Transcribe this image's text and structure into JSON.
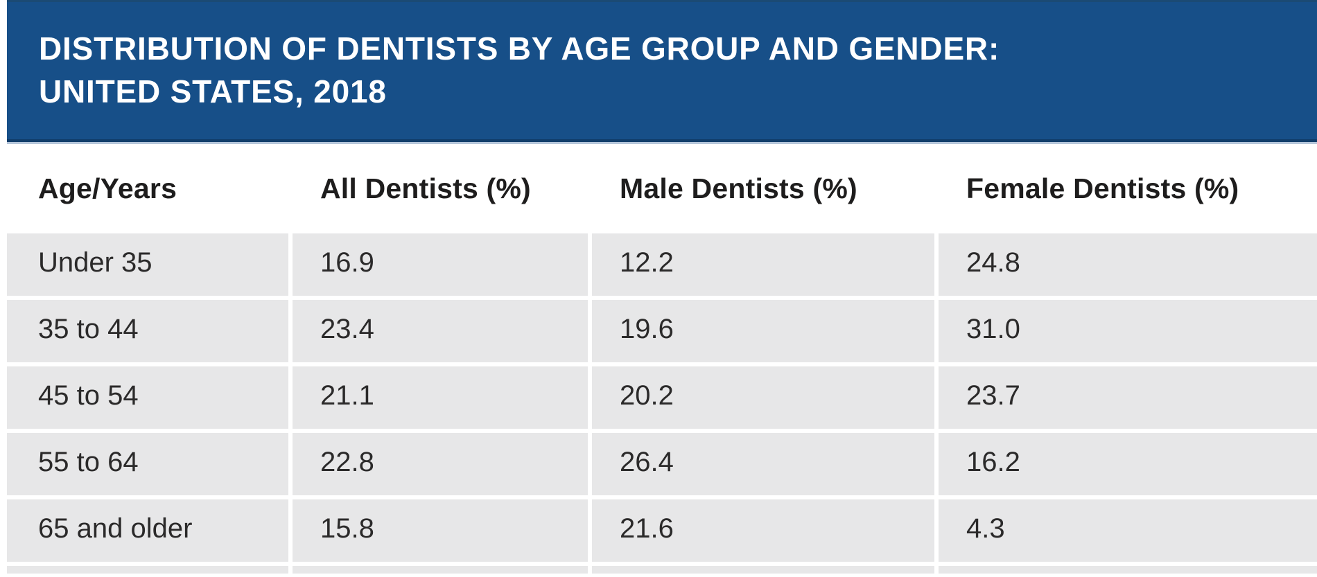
{
  "banner": {
    "title_line1": "DISTRIBUTION OF DENTISTS BY AGE GROUP AND GENDER:",
    "title_line2": "UNITED STATES, 2018"
  },
  "table": {
    "columns": [
      "Age/Years",
      "All Dentists (%)",
      "Male Dentists (%)",
      "Female Dentists (%)"
    ],
    "rows": [
      [
        "Under 35",
        "16.9",
        "12.2",
        "24.8"
      ],
      [
        "35 to 44",
        "23.4",
        "19.6",
        "31.0"
      ],
      [
        "45 to 54",
        "21.1",
        "20.2",
        "23.7"
      ],
      [
        "55 to 64",
        "22.8",
        "26.4",
        "16.2"
      ],
      [
        "65 and older",
        "15.8",
        "21.6",
        "4.3"
      ]
    ]
  },
  "colors": {
    "banner_blue": "#174f88",
    "banner_dark_edge": "#113d6a",
    "banner_light_underline": "#b5c6da",
    "row_gray": "#e7e7e8",
    "text_dark": "#2b2a2a",
    "title_white": "#ffffff"
  },
  "chart_data": {
    "type": "table",
    "title": "DISTRIBUTION OF DENTISTS BY AGE GROUP AND GENDER: UNITED STATES, 2018",
    "categories": [
      "Under 35",
      "35 to 44",
      "45 to 54",
      "55 to 64",
      "65 and older"
    ],
    "category_label": "Age/Years",
    "series": [
      {
        "name": "All Dentists (%)",
        "values": [
          16.9,
          23.4,
          21.1,
          22.8,
          15.8
        ]
      },
      {
        "name": "Male Dentists (%)",
        "values": [
          12.2,
          19.6,
          20.2,
          26.4,
          21.6
        ]
      },
      {
        "name": "Female Dentists (%)",
        "values": [
          24.8,
          31.0,
          23.7,
          16.2,
          4.3
        ]
      }
    ]
  }
}
